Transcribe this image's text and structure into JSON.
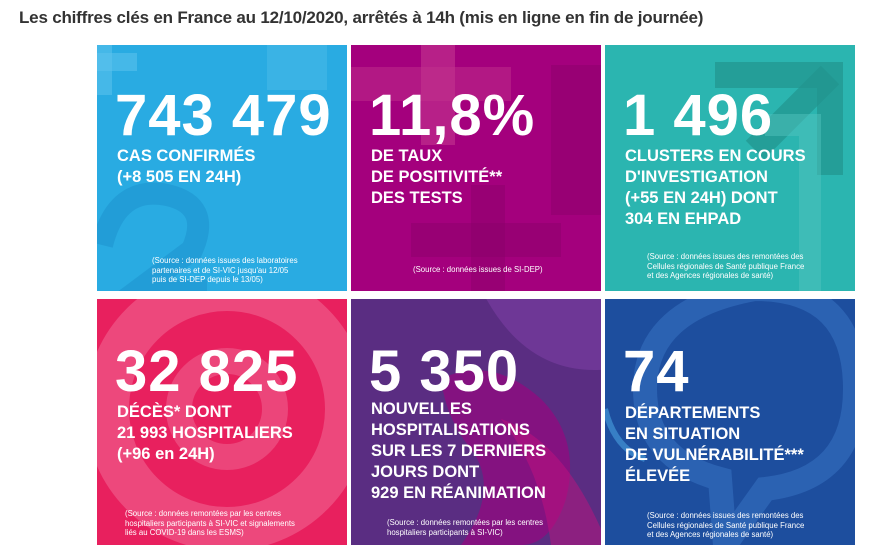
{
  "title": "Les chiffres clés en France au 12/10/2020, arrêtés à 14h (mis en ligne en fin de journée)",
  "colors": {
    "cases": "#29abe2",
    "positivity": "#a4007d",
    "clusters": "#2bb5b0",
    "deaths": "#e8205e",
    "hospitalisations": "#5a2d82",
    "departments": "#1d4e9e"
  },
  "tiles": [
    {
      "value": "743 479",
      "lines": [
        "CAS CONFIRMÉS",
        "(+8 505 EN 24H)"
      ],
      "source": [
        "(Source : données issues des laboratoires",
        "partenaires et de SI-VIC jusqu'au 12/05",
        "puis de SI-DEP depuis le 13/05)"
      ]
    },
    {
      "value": "11,8%",
      "lines": [
        "DE TAUX",
        "DE POSITIVITÉ**",
        "DES TESTS"
      ],
      "source": [
        "(Source : données issues de SI-DEP)"
      ]
    },
    {
      "value": "1 496",
      "lines": [
        "CLUSTERS EN COURS",
        "D'INVESTIGATION",
        "(+55 EN 24H) DONT",
        "304 EN EHPAD"
      ],
      "source": [
        "(Source : données issues des remontées des",
        "Cellules régionales de Santé publique France",
        "et des Agences régionales de santé)"
      ]
    },
    {
      "value": "32 825",
      "lines": [
        "DÉCÈS* DONT",
        "21 993 HOSPITALIERS",
        "(+96 en 24H)"
      ],
      "source": [
        "(Source : données remontées par les centres",
        "hospitaliers participants à SI-VIC et signalements",
        "liés au COVID-19 dans les ESMS)"
      ]
    },
    {
      "value": "5 350",
      "lines": [
        "NOUVELLES",
        "HOSPITALISATIONS",
        "SUR LES 7 DERNIERS",
        "JOURS DONT",
        "929 EN RÉANIMATION"
      ],
      "source": [
        "(Source : données remontées par les centres",
        "hospitaliers participants à SI-VIC)"
      ]
    },
    {
      "value": "74",
      "lines": [
        "DÉPARTEMENTS",
        "EN SITUATION",
        "DE VULNÉRABILITÉ***",
        "ÉLEVÉE"
      ],
      "source": [
        "(Source : données issues des remontées des",
        "Cellules régionales de Santé publique France",
        "et des Agences régionales de santé)"
      ]
    }
  ]
}
